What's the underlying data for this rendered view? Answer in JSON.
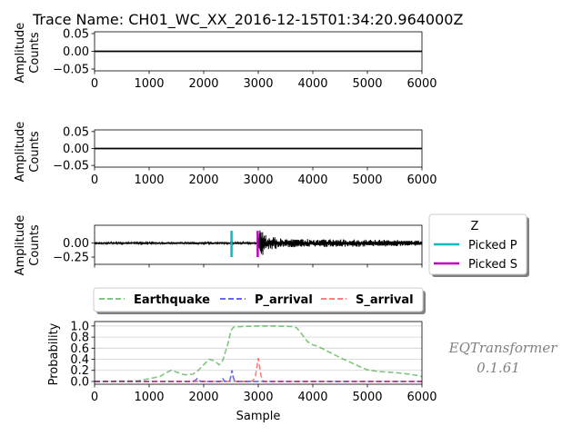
{
  "figure": {
    "title": "Trace Name: CH01_WC_XX_2016-12-15T01:34:20.964000Z",
    "watermark_line1": "EQTransformer",
    "watermark_line2": "0.1.61"
  },
  "chart_data": [
    {
      "type": "line",
      "panel": "channel-1",
      "ylabel_line1": "Amplitude",
      "ylabel_line2": "Counts",
      "xlim": [
        0,
        6000
      ],
      "ylim": [
        -0.055,
        0.055
      ],
      "xticks": [
        "0",
        "1000",
        "2000",
        "3000",
        "4000",
        "5000",
        "6000"
      ],
      "yticks": [
        {
          "value": 0.05,
          "label": "0.05"
        },
        {
          "value": 0.0,
          "label": "0.00"
        },
        {
          "value": -0.05,
          "label": "−0.05"
        }
      ],
      "series": [
        {
          "x": [
            0,
            6000
          ],
          "values": [
            0,
            0
          ],
          "color": "#000000"
        }
      ]
    },
    {
      "type": "line",
      "panel": "channel-2",
      "ylabel_line1": "Amplitude",
      "ylabel_line2": "Counts",
      "xlim": [
        0,
        6000
      ],
      "ylim": [
        -0.055,
        0.055
      ],
      "xticks": [
        "0",
        "1000",
        "2000",
        "3000",
        "4000",
        "5000",
        "6000"
      ],
      "yticks": [
        {
          "value": 0.05,
          "label": "0.05"
        },
        {
          "value": 0.0,
          "label": "0.00"
        },
        {
          "value": -0.05,
          "label": "−0.05"
        }
      ],
      "series": [
        {
          "x": [
            0,
            6000
          ],
          "values": [
            0,
            0
          ],
          "color": "#000000"
        }
      ]
    },
    {
      "type": "line",
      "panel": "channel-Z",
      "ylabel_line1": "Amplitude",
      "ylabel_line2": "Counts",
      "xlim": [
        0,
        6000
      ],
      "ylim": [
        -0.38,
        0.32
      ],
      "xticks": [],
      "yticks": [
        {
          "value": 0.0,
          "label": "0.00"
        },
        {
          "value": -0.25,
          "label": "−0.25"
        }
      ],
      "waveform": {
        "color": "#000000",
        "noise_amplitude": 0.02,
        "coda_envelope": [
          [
            2980,
            0.03
          ],
          [
            3000,
            0.28
          ],
          [
            3050,
            0.24
          ],
          [
            3200,
            0.12
          ],
          [
            3500,
            0.08
          ],
          [
            4500,
            0.07
          ],
          [
            5500,
            0.06
          ],
          [
            6000,
            0.05
          ]
        ]
      },
      "picks": [
        {
          "label": "Picked P",
          "x": 2510,
          "color": "#00bfbf",
          "y_range": [
            -0.25,
            0.22
          ]
        },
        {
          "label": "Picked S",
          "x": 2990,
          "color": "#bf00bf",
          "y_range": [
            -0.25,
            0.22
          ]
        }
      ],
      "legend": {
        "title": "Z",
        "placement": "right",
        "entries": [
          {
            "label": "Picked P",
            "color": "#00bfbf"
          },
          {
            "label": "Picked S",
            "color": "#bf00bf"
          }
        ]
      }
    },
    {
      "type": "line",
      "panel": "probability",
      "xlabel": "Sample",
      "ylabel": "Probability",
      "xlim": [
        0,
        6000
      ],
      "ylim": [
        -0.05,
        1.08
      ],
      "grid": true,
      "xticks": [
        "0",
        "1000",
        "2000",
        "3000",
        "4000",
        "5000",
        "6000"
      ],
      "yticks": [
        {
          "value": 0.0,
          "label": "0.0"
        },
        {
          "value": 0.2,
          "label": "0.2"
        },
        {
          "value": 0.4,
          "label": "0.4"
        },
        {
          "value": 0.6,
          "label": "0.6"
        },
        {
          "value": 0.8,
          "label": "0.8"
        },
        {
          "value": 1.0,
          "label": "1.0"
        }
      ],
      "legend": {
        "placement": "top",
        "bold": true
      },
      "series": [
        {
          "name": "Earthquake",
          "color": "#2ca02c",
          "opacity": 0.6,
          "x": [
            0,
            800,
            1000,
            1200,
            1300,
            1400,
            1500,
            1650,
            1800,
            1900,
            2000,
            2100,
            2200,
            2280,
            2350,
            2450,
            2500,
            2550,
            2700,
            3000,
            3300,
            3600,
            3700,
            3800,
            3900,
            4000,
            4100,
            4300,
            4500,
            4700,
            4900,
            5000,
            5200,
            5500,
            5700,
            5900,
            6000
          ],
          "values": [
            0.0,
            0.01,
            0.05,
            0.09,
            0.15,
            0.2,
            0.17,
            0.12,
            0.13,
            0.2,
            0.3,
            0.4,
            0.37,
            0.3,
            0.38,
            0.7,
            0.92,
            0.98,
            0.99,
            1.0,
            1.0,
            0.99,
            0.97,
            0.85,
            0.72,
            0.66,
            0.63,
            0.53,
            0.43,
            0.34,
            0.25,
            0.21,
            0.18,
            0.16,
            0.14,
            0.11,
            0.09
          ]
        },
        {
          "name": "P_arrival",
          "color": "#0000ff",
          "opacity": 0.6,
          "x": [
            0,
            1800,
            1850,
            1880,
            1910,
            1950,
            2300,
            2320,
            2350,
            2380,
            2480,
            2500,
            2520,
            2540,
            2570,
            6000
          ],
          "values": [
            0.0,
            0.0,
            0.02,
            0.05,
            0.02,
            0.0,
            0.0,
            0.03,
            0.05,
            0.0,
            0.02,
            0.1,
            0.2,
            0.08,
            0.0,
            0.0
          ]
        },
        {
          "name": "S_arrival",
          "color": "#ff0000",
          "opacity": 0.5,
          "x": [
            0,
            1300,
            1340,
            1380,
            2850,
            2900,
            2950,
            2980,
            3000,
            3020,
            3050,
            3100,
            6000
          ],
          "values": [
            0.0,
            0.0,
            0.01,
            0.0,
            0.0,
            0.01,
            0.1,
            0.3,
            0.42,
            0.3,
            0.1,
            0.0,
            0.0
          ]
        }
      ]
    }
  ]
}
